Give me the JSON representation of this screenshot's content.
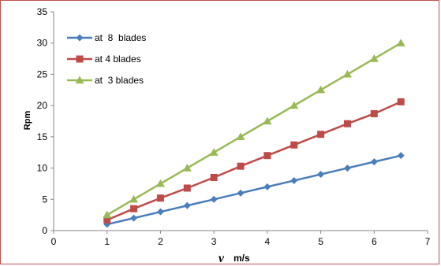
{
  "chart_data": {
    "type": "line",
    "x": [
      1,
      1.5,
      2,
      2.5,
      3,
      3.5,
      4,
      4.5,
      5,
      5.5,
      6,
      6.5
    ],
    "series": [
      {
        "name": "at  8  blades",
        "color": "#4a7ebb",
        "marker": "diamond",
        "values": [
          1,
          2,
          3,
          4,
          5,
          6,
          7,
          8,
          9,
          10,
          11,
          12
        ]
      },
      {
        "name": "at 4 blades",
        "color": "#be4b48",
        "marker": "square",
        "values": [
          1.7,
          3.5,
          5.2,
          6.8,
          8.5,
          10.3,
          12,
          13.7,
          15.4,
          17.1,
          18.7,
          20.6
        ]
      },
      {
        "name": "at  3 blades",
        "color": "#98b954",
        "marker": "triangle",
        "values": [
          2.5,
          5,
          7.5,
          10,
          12.5,
          15,
          17.5,
          20,
          22.5,
          25,
          27.5,
          30
        ]
      }
    ],
    "xlim": [
      0,
      7
    ],
    "ylim": [
      0,
      35
    ],
    "x_ticks": [
      "0",
      "1",
      "2",
      "3",
      "4",
      "5",
      "6",
      "7"
    ],
    "y_ticks": [
      "0",
      "5",
      "10",
      "15",
      "20",
      "25",
      "30",
      "35"
    ],
    "ylabel": "Rpm",
    "xlabel_symbol": "v",
    "xlabel_unit": "m/s",
    "grid": false,
    "legend_position": "top-left"
  }
}
